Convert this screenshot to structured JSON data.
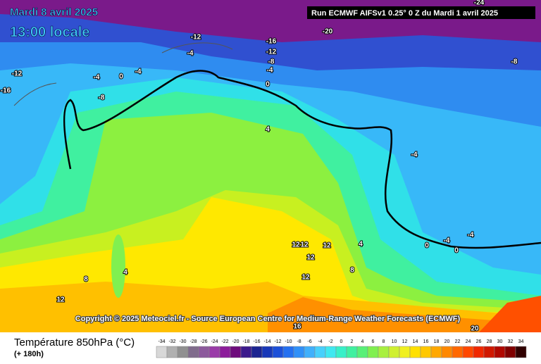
{
  "header": {
    "date": "Mardi 8 avril 2025",
    "time": "13:00 locale",
    "run": "Run ECMWF AIFSv1 0.25° 0 Z du Mardi 1 avril 2025"
  },
  "copyright": "Copyright © 2025 Meteociel.fr - Source European Centre for Medium-Range Weather Forecasts (ECMWF)",
  "legend": {
    "title": "Température 850hPa (°C)",
    "subtitle": "(+ 180h)",
    "scale": [
      -34,
      -32,
      -30,
      -28,
      -26,
      -24,
      -22,
      -20,
      -18,
      -16,
      -14,
      -12,
      -10,
      -8,
      -6,
      -4,
      -2,
      0,
      2,
      4,
      6,
      8,
      10,
      12,
      14,
      16,
      18,
      20,
      22,
      24,
      26,
      28,
      30,
      32,
      34
    ],
    "colors": [
      "#d8d8d8",
      "#b0b0b0",
      "#909090",
      "#806c8c",
      "#8c5a9c",
      "#9a3ca8",
      "#8c1c9a",
      "#6e0c7c",
      "#3c1a8c",
      "#1c2490",
      "#1838b8",
      "#1c50d8",
      "#2470f0",
      "#3090f8",
      "#40b0fc",
      "#48d0fc",
      "#40e8f0",
      "#38f0c8",
      "#40f0a0",
      "#58f078",
      "#80f050",
      "#a8f040",
      "#d0f030",
      "#f0f020",
      "#ffe000",
      "#ffc800",
      "#ffa800",
      "#ff8800",
      "#ff6800",
      "#ff4800",
      "#f02800",
      "#d01800",
      "#b00800",
      "#800000",
      "#300000"
    ]
  },
  "contour_labels": [
    -20,
    -24,
    -12,
    -4,
    -16,
    -12,
    -8,
    -4,
    0,
    -12,
    -16,
    -4,
    0,
    -4,
    -8,
    -8,
    4,
    -4,
    -4,
    -4,
    0,
    0,
    4,
    12,
    12,
    12,
    12,
    8,
    12,
    4,
    8,
    12,
    16,
    20
  ]
}
